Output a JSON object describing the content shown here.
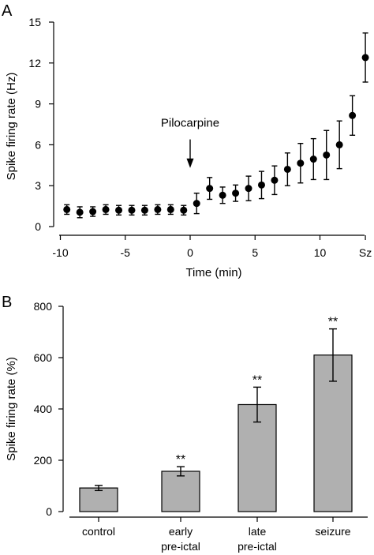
{
  "chart_data": [
    {
      "type": "scatter",
      "panel_label": "A",
      "xlabel": "Time (min)",
      "ylabel": "Spike firing rate (Hz)",
      "ylim": [
        0,
        15
      ],
      "yticks": [
        0,
        3,
        6,
        9,
        12,
        15
      ],
      "xticks": [
        {
          "value": -10,
          "label": "-10"
        },
        {
          "value": -5,
          "label": "-5"
        },
        {
          "value": 0,
          "label": "0"
        },
        {
          "value": 5,
          "label": "5"
        },
        {
          "value": 10,
          "label": "10"
        },
        {
          "value": 13.5,
          "label": "Sz"
        }
      ],
      "xlim": [
        -10.5,
        14
      ],
      "annotation": {
        "text": "Pilocarpine",
        "x": 0,
        "arrow_top_y": 5.7,
        "arrow_bottom_y": 4.3
      },
      "points": [
        {
          "x": -9.5,
          "y": 1.25,
          "err": 0.35
        },
        {
          "x": -8.5,
          "y": 1.05,
          "err": 0.4
        },
        {
          "x": -7.5,
          "y": 1.1,
          "err": 0.35
        },
        {
          "x": -6.5,
          "y": 1.25,
          "err": 0.35
        },
        {
          "x": -5.5,
          "y": 1.2,
          "err": 0.35
        },
        {
          "x": -4.5,
          "y": 1.2,
          "err": 0.35
        },
        {
          "x": -3.5,
          "y": 1.2,
          "err": 0.35
        },
        {
          "x": -2.5,
          "y": 1.25,
          "err": 0.35
        },
        {
          "x": -1.5,
          "y": 1.25,
          "err": 0.35
        },
        {
          "x": -0.5,
          "y": 1.2,
          "err": 0.35
        },
        {
          "x": 0.5,
          "y": 1.7,
          "err": 0.75
        },
        {
          "x": 1.5,
          "y": 2.8,
          "err": 0.8
        },
        {
          "x": 2.5,
          "y": 2.3,
          "err": 0.6
        },
        {
          "x": 3.5,
          "y": 2.45,
          "err": 0.6
        },
        {
          "x": 4.5,
          "y": 2.8,
          "err": 0.9
        },
        {
          "x": 5.5,
          "y": 3.05,
          "err": 1.0
        },
        {
          "x": 6.5,
          "y": 3.4,
          "err": 1.05
        },
        {
          "x": 7.5,
          "y": 4.2,
          "err": 1.2
        },
        {
          "x": 8.5,
          "y": 4.65,
          "err": 1.45
        },
        {
          "x": 9.5,
          "y": 4.95,
          "err": 1.5
        },
        {
          "x": 10.5,
          "y": 5.25,
          "err": 1.8
        },
        {
          "x": 11.5,
          "y": 6.0,
          "err": 1.75
        },
        {
          "x": 12.5,
          "y": 8.15,
          "err": 1.45
        },
        {
          "x": 13.5,
          "y": 12.4,
          "err": 1.8
        }
      ]
    },
    {
      "type": "bar",
      "panel_label": "B",
      "xlabel": "",
      "ylabel": "Spike firing rate (%)",
      "ylim": [
        0,
        800
      ],
      "yticks": [
        0,
        200,
        400,
        600,
        800
      ],
      "categories": [
        {
          "line1": "control",
          "line2": ""
        },
        {
          "line1": "early",
          "line2": "pre-ictal"
        },
        {
          "line1": "late",
          "line2": "pre-ictal"
        },
        {
          "line1": "seizure",
          "line2": ""
        }
      ],
      "values": [
        92,
        157,
        417,
        610
      ],
      "errors": [
        10,
        18,
        68,
        102
      ],
      "significance": [
        "",
        "**",
        "**",
        "**"
      ]
    }
  ]
}
